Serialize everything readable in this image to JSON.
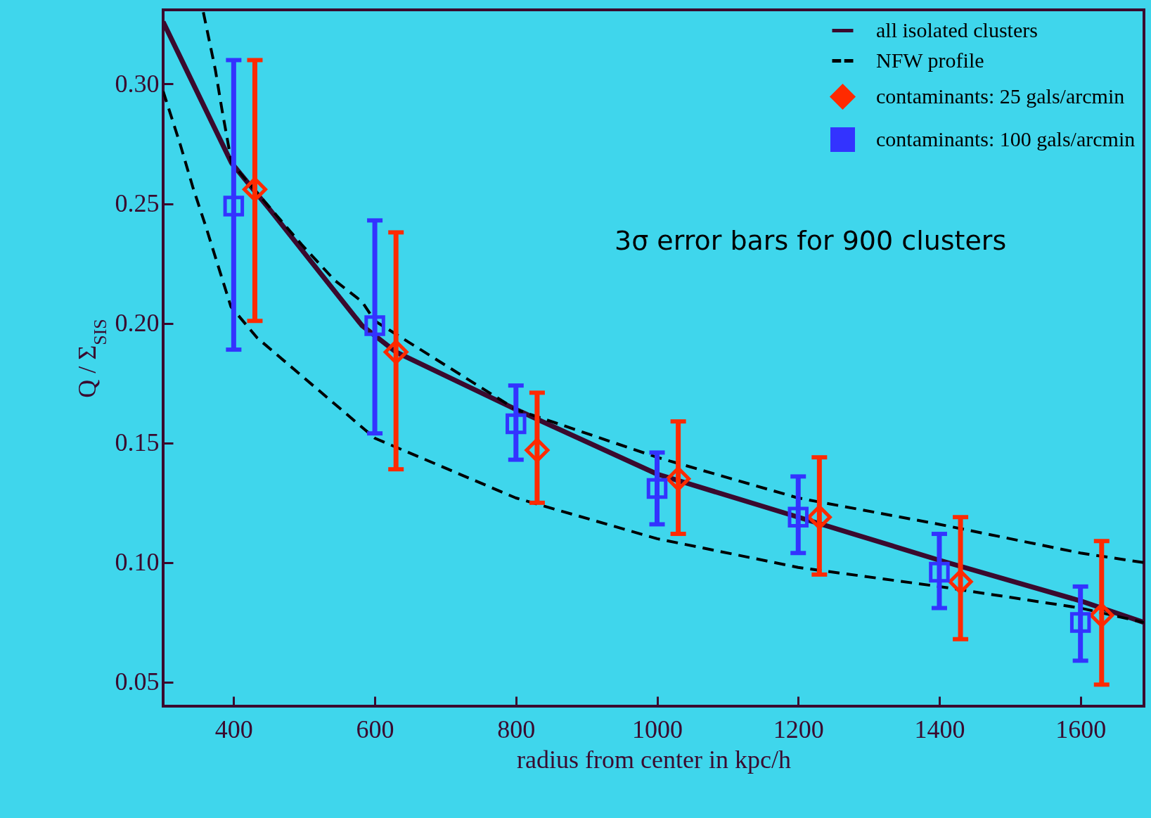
{
  "chart_data": {
    "type": "scatter",
    "xlabel": "radius from center in kpc/h",
    "ylabel": "Q / Σ$_{SIS}$",
    "xlim": [
      300,
      1690
    ],
    "ylim": [
      0.04,
      0.331
    ],
    "xticks": [
      400,
      600,
      800,
      1000,
      1200,
      1400,
      1600
    ],
    "yticks": [
      0.05,
      {
        "value": 0.1,
        "label": "0.10"
      },
      0.15,
      {
        "value": 0.2,
        "label": "0.20"
      },
      0.25,
      {
        "value": 0.3,
        "label": "0.30"
      }
    ],
    "grid": false,
    "legend": "top right",
    "annotations": [
      "3σ error bars for 900 clusters"
    ],
    "series": [
      {
        "name": "all isolated clusters",
        "type": "line",
        "line_style": "solid",
        "color": "#3a0a2e",
        "x": [
          300,
          397,
          450,
          582,
          630,
          800,
          1000,
          1200,
          1400,
          1600,
          1690
        ],
        "values": [
          0.326,
          0.267,
          0.248,
          0.199,
          0.188,
          0.164,
          0.137,
          0.119,
          0.101,
          0.084,
          0.075
        ]
      },
      {
        "name": "NFW profile",
        "type": "line",
        "line_style": "dashed",
        "color": "#000000",
        "x": [
          357,
          374,
          383,
          397,
          496,
          543,
          582,
          600,
          800,
          1000,
          1200,
          1400,
          1600,
          1690
        ],
        "values": [
          0.33,
          0.306,
          0.29,
          0.267,
          0.233,
          0.218,
          0.209,
          0.201,
          0.164,
          0.144,
          0.127,
          0.116,
          0.104,
          0.1
        ]
      },
      {
        "type": "line",
        "line_style": "dashed",
        "color": "#000000",
        "x": [
          300,
          324,
          342,
          361,
          379,
          396,
          433,
          600,
          800,
          1000,
          1200,
          1400,
          1600,
          1690
        ],
        "values": [
          0.297,
          0.275,
          0.257,
          0.24,
          0.223,
          0.207,
          0.194,
          0.152,
          0.127,
          0.11,
          0.098,
          0.09,
          0.081,
          0.075
        ]
      },
      {
        "name": "contaminants: 25 gals/arcmin",
        "type": "scatter",
        "marker": "diamond",
        "color": "#ff2a00",
        "x": [
          430,
          630,
          830,
          1030,
          1230,
          1430,
          1630
        ],
        "values": [
          0.256,
          0.188,
          0.147,
          0.135,
          0.119,
          0.092,
          0.078
        ],
        "errors": [
          [
            0.201,
            0.31
          ],
          [
            0.139,
            0.238
          ],
          [
            0.125,
            0.171
          ],
          [
            0.112,
            0.159
          ],
          [
            0.095,
            0.144
          ],
          [
            0.068,
            0.119
          ],
          [
            0.049,
            0.109
          ]
        ]
      },
      {
        "name": "contaminants: 100 gals/arcmin",
        "type": "scatter",
        "marker": "square",
        "color": "#3333ff",
        "x": [
          400,
          600,
          800,
          1000,
          1200,
          1400,
          1600
        ],
        "values": [
          0.249,
          0.199,
          0.158,
          0.131,
          0.119,
          0.096,
          0.075
        ],
        "errors": [
          [
            0.189,
            0.31
          ],
          [
            0.154,
            0.243
          ],
          [
            0.143,
            0.174
          ],
          [
            0.116,
            0.146
          ],
          [
            0.104,
            0.136
          ],
          [
            0.081,
            0.112
          ],
          [
            0.059,
            0.09
          ]
        ]
      }
    ]
  }
}
